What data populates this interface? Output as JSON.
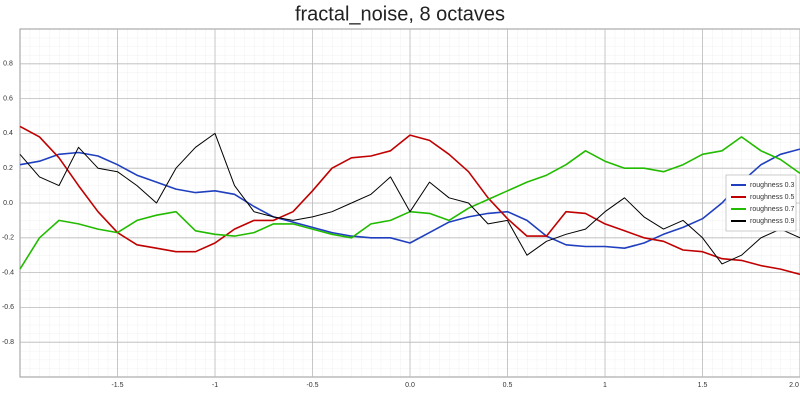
{
  "chart_data": {
    "type": "line",
    "title": "fractal_noise, 8 octaves",
    "x": [
      -2,
      -1.9,
      -1.8,
      -1.7,
      -1.6,
      -1.5,
      -1.4,
      -1.3,
      -1.2,
      -1.1,
      -1,
      -0.9,
      -0.8,
      -0.7,
      -0.6,
      -0.5,
      -0.4,
      -0.3,
      -0.2,
      -0.1,
      0,
      0.1,
      0.2,
      0.3,
      0.4,
      0.5,
      0.6,
      0.7,
      0.8,
      0.9,
      1,
      1.1,
      1.2,
      1.3,
      1.4,
      1.5,
      1.6,
      1.7,
      1.8,
      1.9,
      2
    ],
    "series": [
      {
        "name": "roughness 0.3",
        "color": "#1f3fbf",
        "values": [
          0.22,
          0.24,
          0.28,
          0.29,
          0.27,
          0.22,
          0.16,
          0.12,
          0.08,
          0.06,
          0.07,
          0.05,
          -0.02,
          -0.08,
          -0.11,
          -0.14,
          -0.17,
          -0.19,
          -0.2,
          -0.2,
          -0.23,
          -0.17,
          -0.11,
          -0.08,
          -0.06,
          -0.05,
          -0.1,
          -0.19,
          -0.24,
          -0.25,
          -0.25,
          -0.26,
          -0.23,
          -0.18,
          -0.14,
          -0.09,
          0,
          0.12,
          0.22,
          0.28,
          0.31
        ]
      },
      {
        "name": "roughness 0.5",
        "color": "#c00000",
        "values": [
          0.44,
          0.38,
          0.26,
          0.1,
          -0.05,
          -0.17,
          -0.24,
          -0.26,
          -0.28,
          -0.28,
          -0.23,
          -0.15,
          -0.1,
          -0.1,
          -0.05,
          0.07,
          0.2,
          0.26,
          0.27,
          0.3,
          0.39,
          0.36,
          0.28,
          0.18,
          0.03,
          -0.09,
          -0.19,
          -0.19,
          -0.05,
          -0.06,
          -0.12,
          -0.16,
          -0.2,
          -0.22,
          -0.27,
          -0.28,
          -0.32,
          -0.33,
          -0.36,
          -0.38,
          -0.41
        ]
      },
      {
        "name": "roughness 0.7",
        "color": "#22bb00",
        "values": [
          -0.38,
          -0.2,
          -0.1,
          -0.12,
          -0.15,
          -0.17,
          -0.1,
          -0.07,
          -0.05,
          -0.16,
          -0.18,
          -0.19,
          -0.17,
          -0.12,
          -0.12,
          -0.15,
          -0.18,
          -0.2,
          -0.12,
          -0.1,
          -0.05,
          -0.06,
          -0.1,
          -0.03,
          0.02,
          0.07,
          0.12,
          0.16,
          0.22,
          0.3,
          0.24,
          0.2,
          0.2,
          0.18,
          0.22,
          0.28,
          0.3,
          0.38,
          0.3,
          0.25,
          0.17
        ]
      },
      {
        "name": "roughness 0.9",
        "color": "#000000",
        "values": [
          0.28,
          0.15,
          0.1,
          0.32,
          0.2,
          0.18,
          0.1,
          0,
          0.2,
          0.32,
          0.4,
          0.1,
          -0.05,
          -0.08,
          -0.1,
          -0.08,
          -0.05,
          0,
          0.05,
          0.15,
          -0.05,
          0.12,
          0.03,
          0,
          -0.12,
          -0.1,
          -0.3,
          -0.22,
          -0.18,
          -0.15,
          -0.05,
          0.03,
          -0.08,
          -0.15,
          -0.1,
          -0.2,
          -0.35,
          -0.3,
          -0.2,
          -0.15,
          -0.2
        ]
      }
    ],
    "xlim": [
      -2,
      2
    ],
    "ylim": [
      -1,
      1
    ],
    "xticks": [
      -1.5,
      -1,
      -0.5,
      {
        "value": 0,
        "label": "0.0"
      },
      0.5,
      1,
      1.5,
      {
        "value": 2,
        "label": "2.0"
      }
    ],
    "yticks": [
      -0.8,
      -0.6,
      -0.4,
      -0.2,
      {
        "value": 0,
        "label": "0.0"
      },
      0.2,
      0.4,
      0.6,
      0.8
    ],
    "grid": true,
    "legend": "right"
  }
}
